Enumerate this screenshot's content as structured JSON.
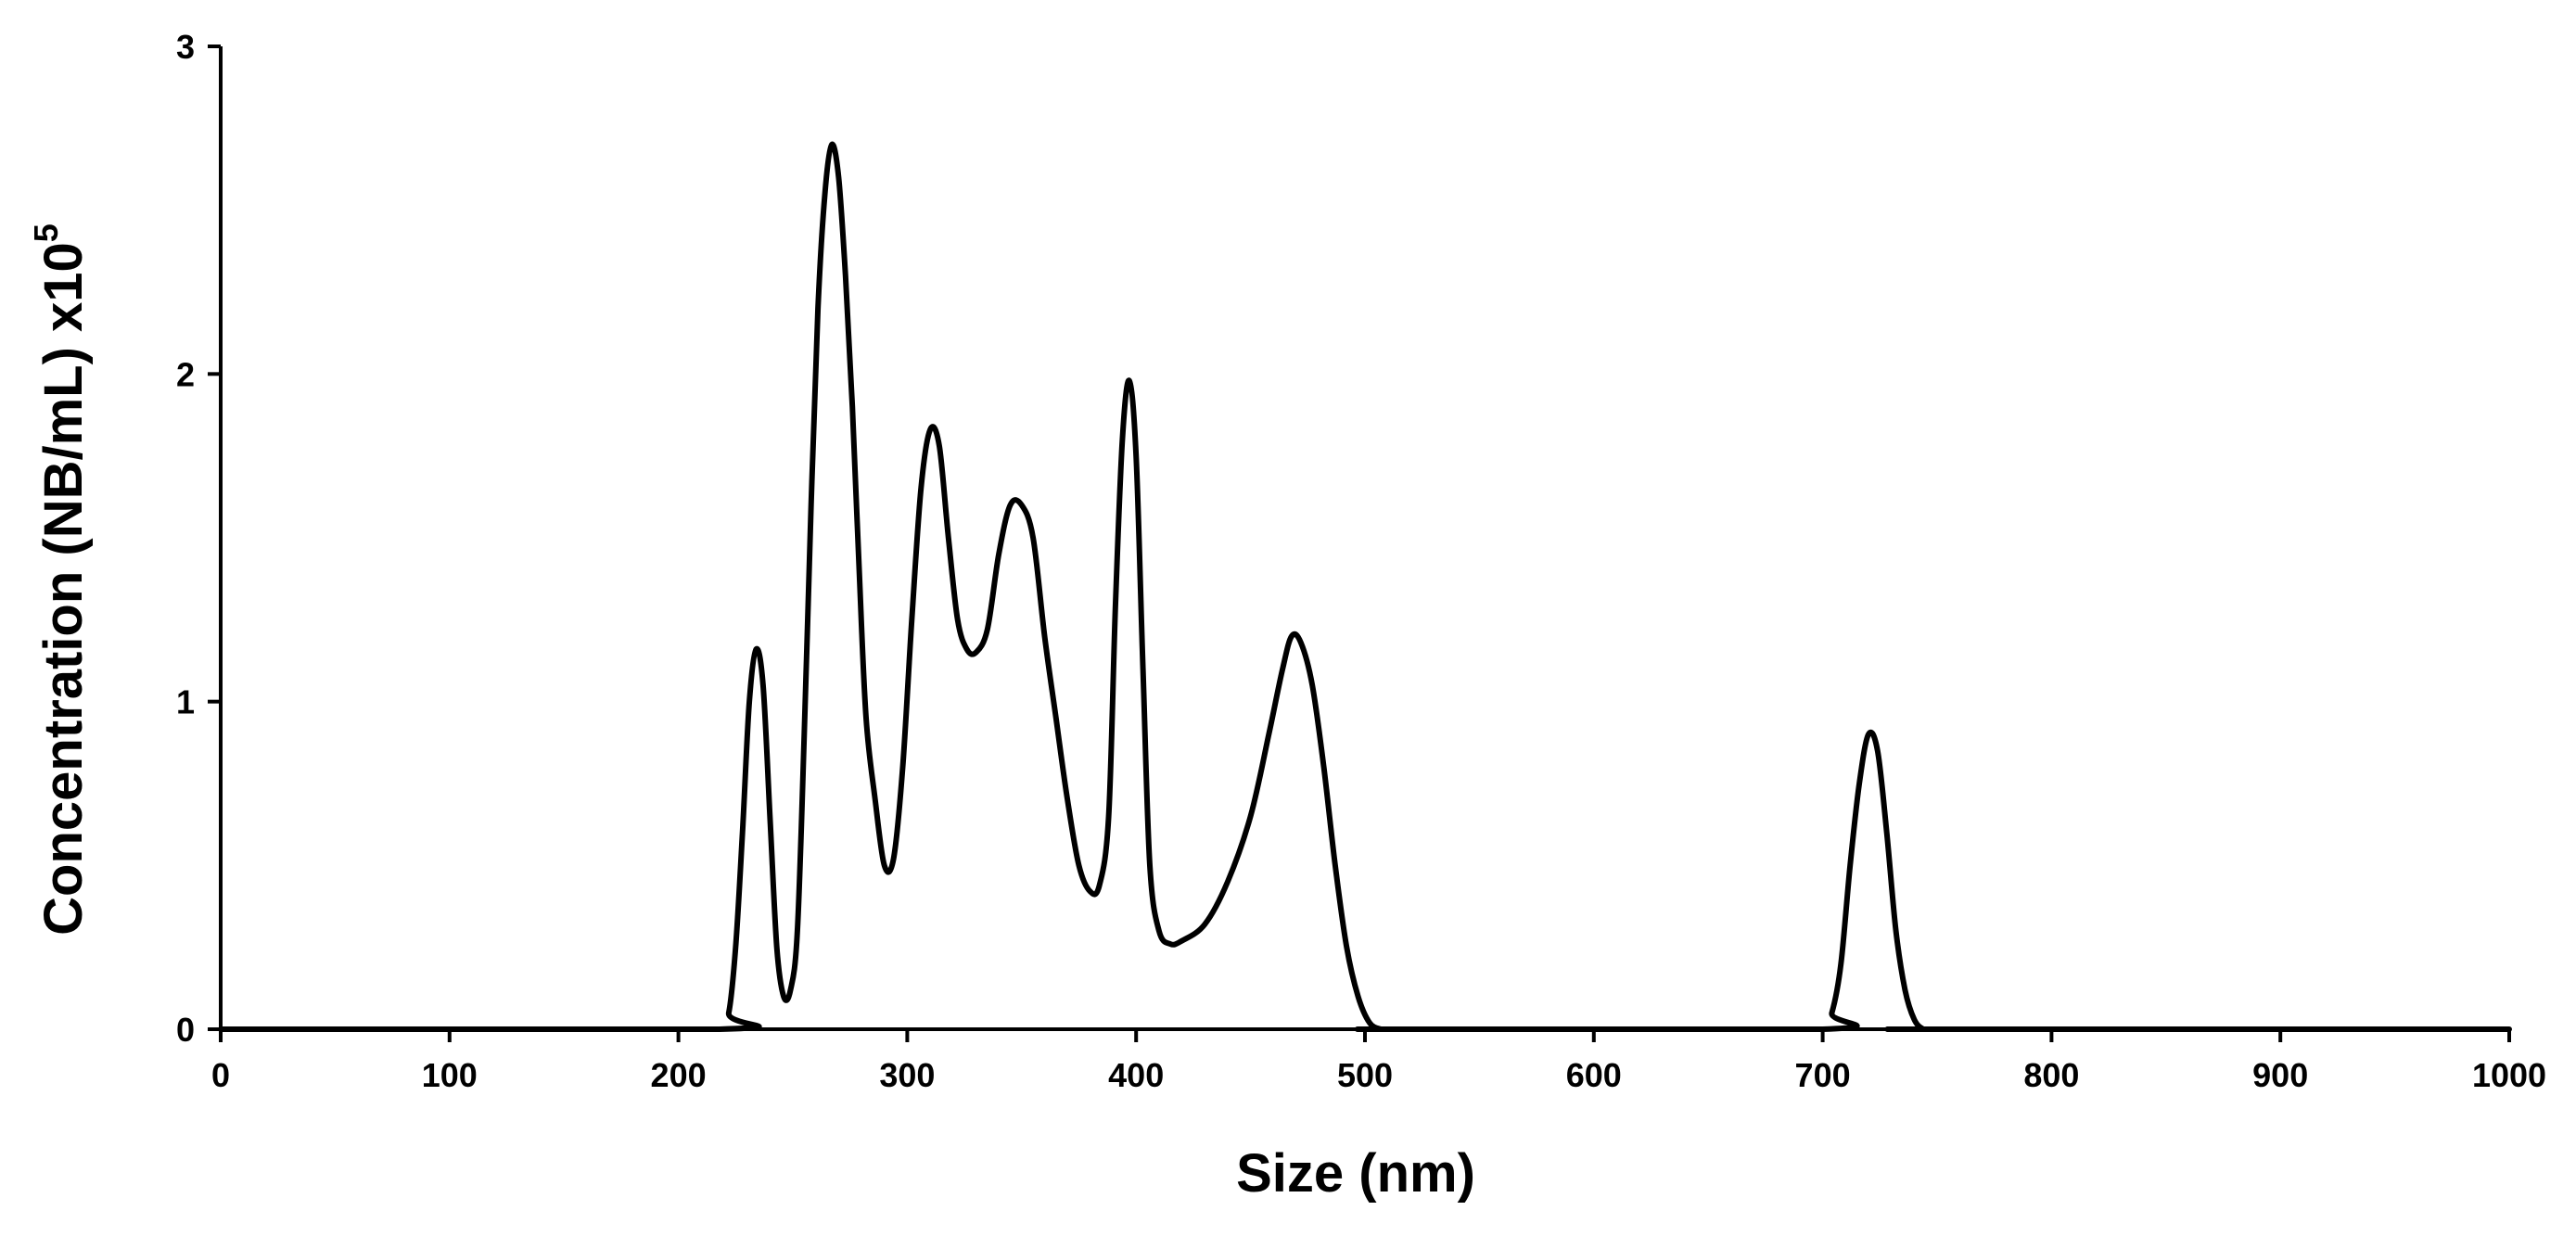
{
  "chart_data": {
    "type": "line",
    "title": "",
    "xlabel": "Size (nm)",
    "ylabel_main": "Concentration (NB/mL) x10",
    "ylabel_sup": "5",
    "xlim": [
      0,
      1000
    ],
    "ylim": [
      0,
      3
    ],
    "xticks": [
      0,
      100,
      200,
      300,
      400,
      500,
      600,
      700,
      800,
      900,
      1000
    ],
    "yticks": [
      0,
      1,
      2,
      3
    ],
    "grid": false,
    "line_color": "#000000",
    "series": [
      {
        "x": [
          0,
          218,
          222,
          225,
          228,
          231,
          234,
          237,
          240,
          243,
          246,
          249,
          252,
          255,
          258,
          261,
          264,
          267,
          270,
          273,
          276,
          279,
          282,
          286,
          290,
          294,
          298,
          302,
          306,
          310,
          314,
          318,
          322,
          326,
          330,
          335,
          340,
          345,
          350,
          355,
          360,
          365,
          370,
          375,
          380,
          384,
          388,
          391,
          394,
          397,
          400,
          403,
          406,
          410,
          415,
          420,
          430,
          440,
          450,
          458,
          464,
          468,
          472,
          477,
          482,
          487,
          492,
          497,
          502,
          507,
          512,
          700,
          704,
          708,
          712,
          716,
          720,
          724,
          728,
          732,
          736,
          740,
          744,
          748,
          1000
        ],
        "y": [
          0,
          0,
          0.05,
          0.25,
          0.6,
          1.0,
          1.16,
          1.05,
          0.65,
          0.25,
          0.1,
          0.12,
          0.3,
          0.9,
          1.6,
          2.2,
          2.55,
          2.7,
          2.6,
          2.3,
          1.9,
          1.4,
          0.95,
          0.7,
          0.5,
          0.52,
          0.8,
          1.25,
          1.65,
          1.83,
          1.78,
          1.5,
          1.25,
          1.16,
          1.15,
          1.22,
          1.45,
          1.6,
          1.6,
          1.5,
          1.2,
          0.95,
          0.7,
          0.5,
          0.42,
          0.44,
          0.65,
          1.3,
          1.8,
          1.98,
          1.75,
          1.1,
          0.5,
          0.3,
          0.26,
          0.27,
          0.32,
          0.45,
          0.65,
          0.9,
          1.1,
          1.2,
          1.18,
          1.05,
          0.8,
          0.5,
          0.25,
          0.1,
          0.02,
          0,
          0,
          0,
          0.05,
          0.2,
          0.5,
          0.75,
          0.9,
          0.85,
          0.6,
          0.3,
          0.12,
          0.03,
          0,
          0,
          0
        ]
      }
    ]
  }
}
